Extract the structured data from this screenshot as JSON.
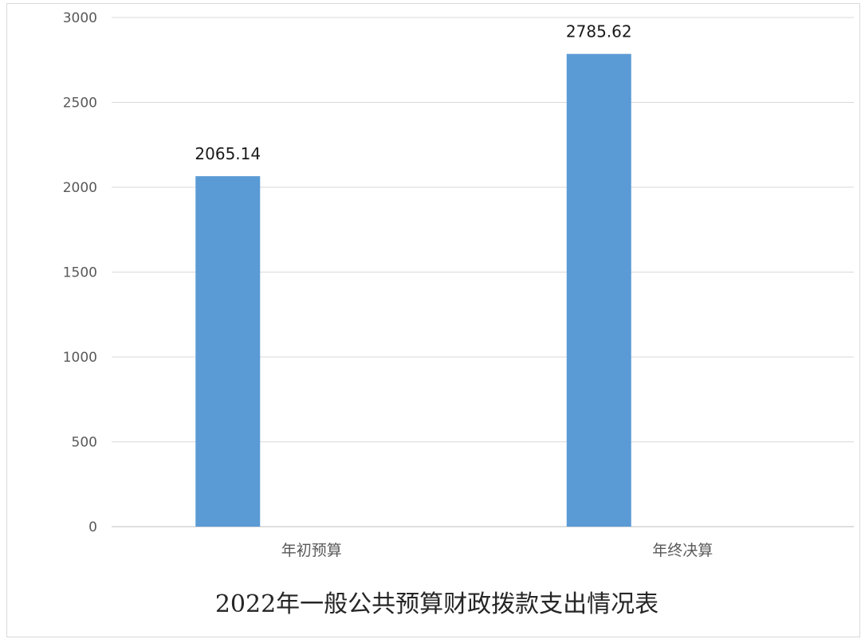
{
  "chart_data": {
    "type": "bar",
    "title": "2022年一般公共预算财政拨款支出情况表",
    "xlabel": "",
    "ylabel": "",
    "categories": [
      "年初预算",
      "年终决算"
    ],
    "values": [
      2065.14,
      2785.62
    ],
    "data_labels": [
      "2065.14",
      "2785.62"
    ],
    "ylim": [
      0,
      3000
    ],
    "yticks": [
      0,
      500,
      1000,
      1500,
      2000,
      2500,
      3000
    ],
    "ytick_labels": [
      "0",
      "500",
      "1000",
      "1500",
      "2000",
      "2500",
      "3000"
    ],
    "grid": true,
    "legend": "none",
    "bar_color": "#5b9bd5",
    "grid_color": "#d9d9d9"
  }
}
